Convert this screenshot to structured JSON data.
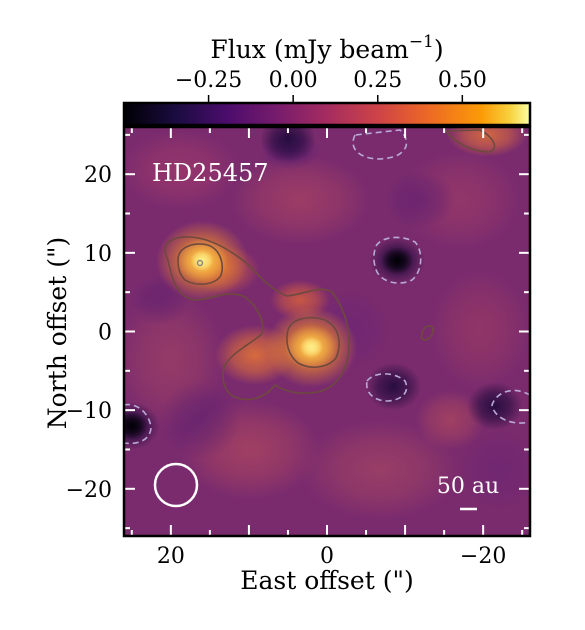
{
  "chart_data": {
    "type": "heatmap",
    "label": "HD25457",
    "xlabel": "East offset (\")",
    "ylabel": "North offset (\")",
    "colorbar": {
      "label": "Flux (mJy beam",
      "label_exponent": "−1",
      "label_close": ")",
      "ticks": [
        -0.25,
        0.0,
        0.25,
        0.5
      ],
      "tick_labels": [
        "−0.25",
        "0.00",
        "0.25",
        "0.50"
      ],
      "range": [
        -0.5,
        0.7
      ],
      "colormap": "inferno"
    },
    "xlim": [
      26,
      -26
    ],
    "ylim": [
      -26,
      26
    ],
    "x_ticks": [
      20,
      0,
      -20
    ],
    "x_tick_labels": [
      "20",
      "0",
      "−20"
    ],
    "y_ticks": [
      20,
      10,
      0,
      -10,
      -20
    ],
    "y_tick_labels": [
      "20",
      "10",
      "0",
      "−10",
      "−20"
    ],
    "scale_bar": {
      "label": "50 au",
      "length_arcsec": 2.2
    },
    "beam": {
      "x": 19,
      "y": -19,
      "radius_arcsec": 3
    },
    "sources": [
      {
        "x": 16,
        "y": 9,
        "peak": 0.62
      },
      {
        "x": 2,
        "y": -2,
        "peak": 0.66
      }
    ],
    "negative_features": [
      {
        "x": -9,
        "y": 9,
        "value": -0.45
      },
      {
        "x": -8.5,
        "y": -7,
        "value": -0.22
      },
      {
        "x": 25,
        "y": -12,
        "value": -0.35
      },
      {
        "x": -21.5,
        "y": -9.5,
        "value": -0.2
      },
      {
        "x": 5,
        "y": 24.5,
        "value": -0.15
      },
      {
        "x": -20.5,
        "y": 25,
        "value": 0.4
      }
    ]
  }
}
